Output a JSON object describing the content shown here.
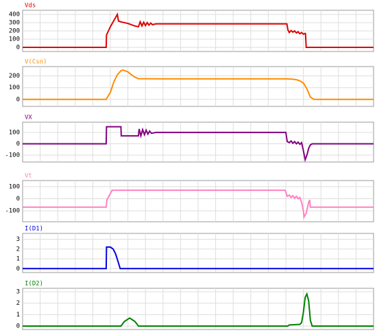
{
  "chart_data": [
    {
      "type": "line",
      "title": "Vds",
      "color": "#e00000",
      "x": [
        0,
        23.8,
        23.9,
        25,
        27,
        27.3,
        28,
        30,
        32,
        33,
        33.5,
        34,
        34.5,
        35,
        35.5,
        36,
        36.5,
        37,
        38,
        40,
        60,
        75.3,
        75.6,
        76,
        76.5,
        77,
        77.5,
        78,
        78.5,
        79,
        79.5,
        80,
        80.5,
        80.6,
        80.8,
        100
      ],
      "values": [
        0,
        0,
        150,
        250,
        400,
        320,
        310,
        290,
        260,
        250,
        310,
        260,
        305,
        265,
        300,
        270,
        295,
        275,
        285,
        285,
        285,
        285,
        210,
        180,
        205,
        185,
        200,
        175,
        190,
        165,
        180,
        160,
        170,
        165,
        0,
        0
      ],
      "xlim": [
        0,
        100
      ],
      "ylim": [
        -50,
        450
      ],
      "yticks": [
        0,
        100,
        200,
        300,
        400
      ],
      "grid": true
    },
    {
      "type": "line",
      "title": "V(Csn)",
      "color": "#ff8c00",
      "x": [
        0,
        23.8,
        25,
        26,
        27,
        28,
        28.7,
        30,
        31,
        32,
        33,
        40,
        75,
        77,
        78,
        79,
        80,
        81,
        82,
        83,
        100
      ],
      "values": [
        0,
        0,
        60,
        150,
        210,
        245,
        250,
        235,
        210,
        190,
        177,
        175,
        175,
        172,
        168,
        158,
        140,
        90,
        20,
        0,
        0
      ],
      "xlim": [
        0,
        100
      ],
      "ylim": [
        -60,
        280
      ],
      "yticks": [
        0,
        100,
        200
      ],
      "grid": true
    },
    {
      "type": "line",
      "title": "VX",
      "color": "#800080",
      "x": [
        0,
        23.8,
        23.9,
        28,
        28.1,
        33,
        33.2,
        33.7,
        34.2,
        34.7,
        35.2,
        35.7,
        36.2,
        36.7,
        38,
        75,
        75.4,
        76,
        76.5,
        77,
        77.5,
        78,
        78.5,
        79,
        79.5,
        80,
        80.5,
        81,
        81.5,
        82,
        82.5,
        100
      ],
      "values": [
        0,
        0,
        150,
        150,
        70,
        70,
        130,
        70,
        125,
        80,
        120,
        85,
        112,
        92,
        100,
        100,
        20,
        10,
        25,
        5,
        20,
        0,
        15,
        -5,
        10,
        -60,
        -140,
        -100,
        -40,
        -10,
        0,
        0
      ],
      "xlim": [
        0,
        100
      ],
      "ylim": [
        -160,
        190
      ],
      "yticks": [
        -100,
        0,
        100
      ],
      "grid": true
    },
    {
      "type": "line",
      "title": "Vt",
      "color": "#ff80c0",
      "x": [
        0,
        23.8,
        24,
        25.5,
        74.8,
        75.4,
        76,
        76.5,
        77,
        77.5,
        78,
        78.5,
        79,
        79.5,
        80,
        80.2,
        80.8,
        81.5,
        81.8,
        82,
        100
      ],
      "values": [
        -70,
        -70,
        -10,
        70,
        70,
        20,
        30,
        10,
        25,
        5,
        20,
        0,
        10,
        -30,
        -100,
        -150,
        -120,
        -30,
        -10,
        -70,
        -70
      ],
      "xlim": [
        0,
        100
      ],
      "ylim": [
        -190,
        150
      ],
      "yticks": [
        -100,
        0,
        100
      ],
      "grid": true
    },
    {
      "type": "line",
      "title": "I(D1)",
      "color": "#0000e0",
      "x": [
        0,
        23.8,
        23.9,
        25,
        25.8,
        26.5,
        27.2,
        27.8,
        100
      ],
      "values": [
        0,
        0,
        2.2,
        2.2,
        2.0,
        1.5,
        0.7,
        0,
        0
      ],
      "xlim": [
        0,
        100
      ],
      "ylim": [
        -0.4,
        3.6
      ],
      "yticks": [
        0,
        1,
        2,
        3
      ],
      "grid": true
    },
    {
      "type": "line",
      "title": "I(D2)",
      "color": "#008000",
      "x": [
        0,
        28,
        29,
        30.5,
        32,
        33,
        75.5,
        76,
        79,
        79.5,
        80,
        80.5,
        81,
        81.5,
        82,
        82.5,
        100
      ],
      "values": [
        0,
        0,
        0.4,
        0.7,
        0.4,
        0,
        0,
        0.1,
        0.15,
        0.3,
        1.2,
        2.5,
        2.8,
        2.2,
        0.5,
        0,
        0
      ],
      "xlim": [
        0,
        100
      ],
      "ylim": [
        -0.3,
        3.3
      ],
      "yticks": [
        0,
        1,
        2,
        3
      ],
      "grid": true
    }
  ]
}
